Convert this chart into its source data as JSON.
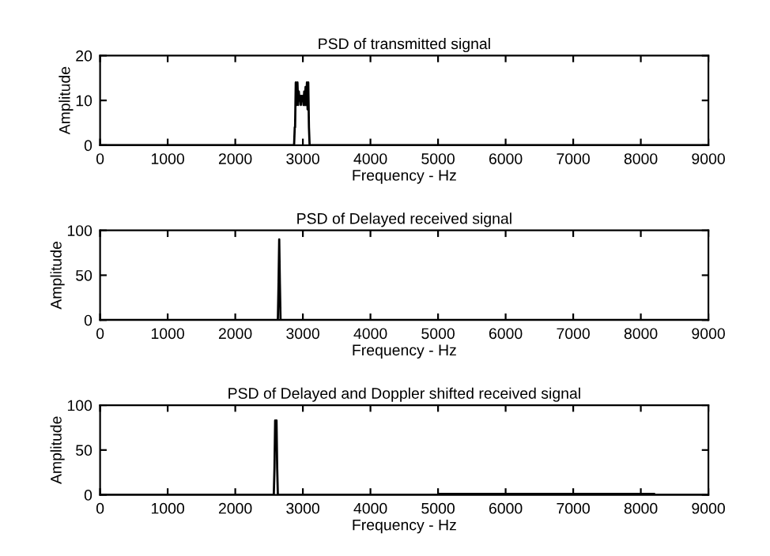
{
  "chart_data": [
    {
      "type": "line",
      "title": "PSD of transmitted signal",
      "xlabel": "Frequency - Hz",
      "ylabel": "Amplitude",
      "xlim": [
        0,
        9000
      ],
      "ylim": [
        0,
        20
      ],
      "xticks": [
        0,
        1000,
        2000,
        3000,
        4000,
        5000,
        6000,
        7000,
        8000,
        9000
      ],
      "yticks": [
        0,
        10,
        20
      ],
      "series": [
        {
          "color": "#000000",
          "x": [
            0,
            2870,
            2880,
            2885,
            2895,
            2900,
            2910,
            2920,
            2930,
            2940,
            2950,
            2960,
            2970,
            2980,
            2990,
            3000,
            3010,
            3020,
            3030,
            3040,
            3050,
            3060,
            3070,
            3080,
            3090,
            3100,
            9000
          ],
          "values": [
            0,
            0,
            4,
            4,
            14,
            13,
            9,
            14,
            9,
            12,
            10,
            11,
            9,
            11,
            10,
            11,
            9,
            12,
            9,
            13,
            9,
            14,
            8,
            14,
            4,
            0,
            0
          ]
        }
      ]
    },
    {
      "type": "line",
      "title": "PSD of Delayed received signal",
      "xlabel": "Frequency - Hz",
      "ylabel": "Amplitude",
      "xlim": [
        0,
        9000
      ],
      "ylim": [
        0,
        100
      ],
      "xticks": [
        0,
        1000,
        2000,
        3000,
        4000,
        5000,
        6000,
        7000,
        8000,
        9000
      ],
      "yticks": [
        0,
        50,
        100
      ],
      "series": [
        {
          "color": "#000000",
          "x": [
            0,
            2630,
            2640,
            2650,
            2660,
            2670,
            9000
          ],
          "values": [
            0,
            0,
            40,
            90,
            40,
            0,
            0
          ]
        }
      ]
    },
    {
      "type": "line",
      "title": "PSD of Delayed and Doppler shifted received signal",
      "xlabel": "Frequency - Hz",
      "ylabel": "Amplitude",
      "xlim": [
        0,
        9000
      ],
      "ylim": [
        0,
        100
      ],
      "xticks": [
        0,
        1000,
        2000,
        3000,
        4000,
        5000,
        6000,
        7000,
        8000,
        9000
      ],
      "yticks": [
        0,
        50,
        100
      ],
      "series": [
        {
          "color": "#000000",
          "x": [
            0,
            2570,
            2580,
            2590,
            2600,
            2610,
            2620,
            2630,
            5000,
            5010,
            8200,
            8210,
            9000
          ],
          "values": [
            0,
            0,
            30,
            83,
            80,
            83,
            30,
            0,
            0,
            1,
            1,
            0,
            0
          ]
        }
      ]
    }
  ]
}
